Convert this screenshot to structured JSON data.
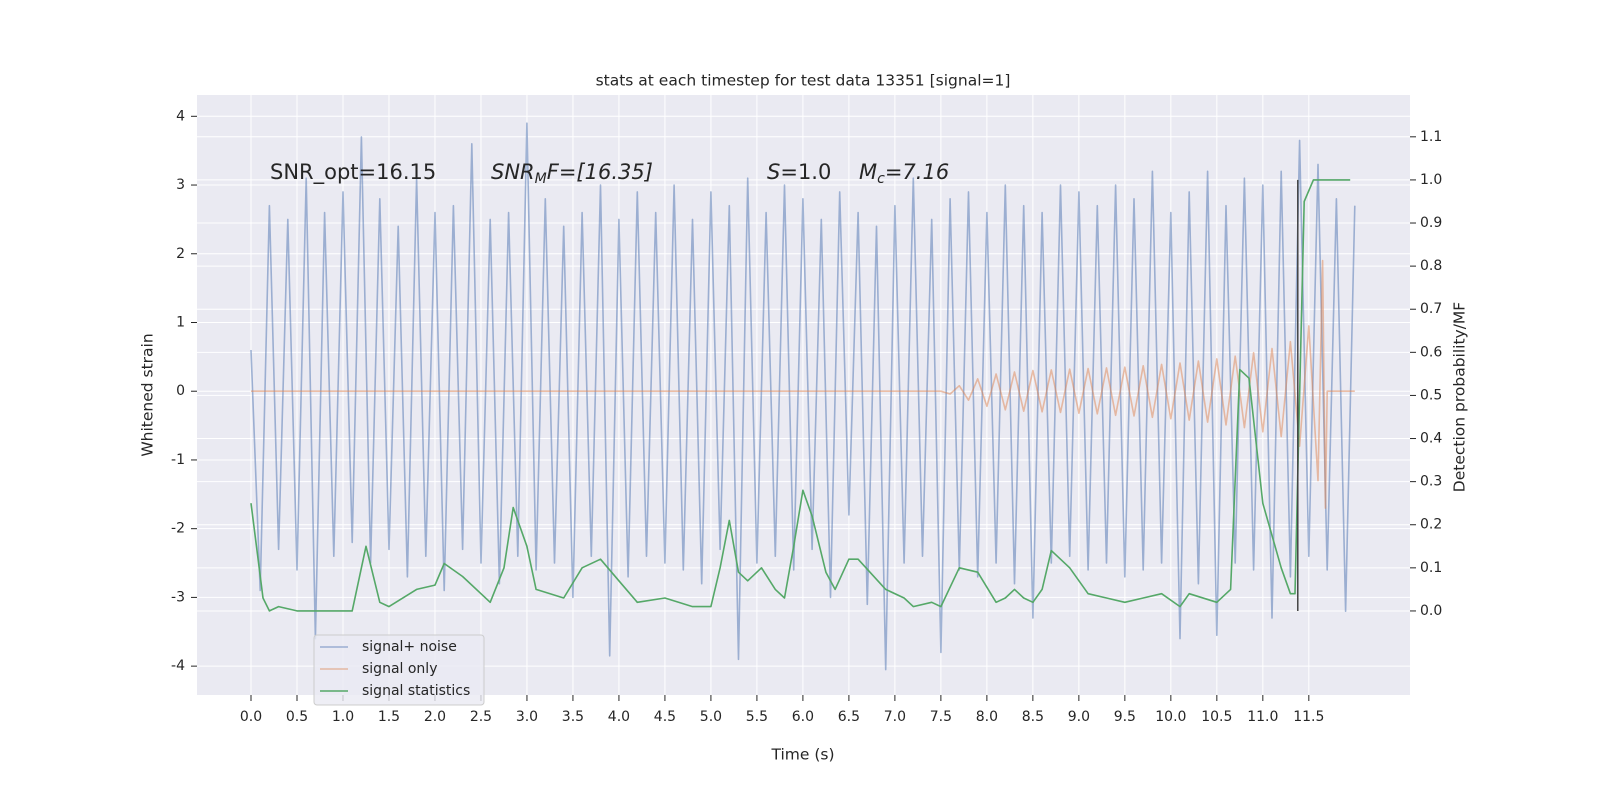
{
  "chart_data": {
    "type": "line",
    "title": "stats at each timestep for test data 13351 [signal=1]",
    "xlabel": "Time (s)",
    "ylabel": "Whitened strain",
    "y2label": "Detection probability/MF",
    "grid": true,
    "legend": "lower left",
    "xlim": [
      -0.587,
      12.6
    ],
    "ylim": [
      -4.42,
      4.31
    ],
    "y2lim": [
      -0.195,
      1.197
    ],
    "xticks": [
      {
        "value": 0,
        "label": "0.0"
      },
      0.5,
      {
        "value": 1,
        "label": "1.0"
      },
      1.5,
      {
        "value": 2,
        "label": "2.0"
      },
      2.5,
      {
        "value": 3,
        "label": "3.0"
      },
      3.5,
      {
        "value": 4,
        "label": "4.0"
      },
      4.5,
      {
        "value": 5,
        "label": "5.0"
      },
      5.5,
      {
        "value": 6,
        "label": "6.0"
      },
      6.5,
      {
        "value": 7,
        "label": "7.0"
      },
      7.5,
      {
        "value": 8,
        "label": "8.0"
      },
      8.5,
      {
        "value": 9,
        "label": "9.0"
      },
      9.5,
      {
        "value": 10,
        "label": "10.0"
      },
      10.5,
      {
        "value": 11,
        "label": "11.0"
      },
      11.5
    ],
    "yticks": [
      -4,
      -3,
      -2,
      -1,
      0,
      1,
      2,
      3,
      4
    ],
    "y2ticks": [
      {
        "value": 0,
        "label": "0.0"
      },
      0.1,
      0.2,
      0.3,
      0.4,
      0.5,
      0.6,
      0.7,
      0.8,
      0.9,
      {
        "value": 1,
        "label": "1.0"
      },
      1.1
    ],
    "annotations": [
      {
        "main": "SNR_opt=16.15"
      },
      {
        "main": "SNR",
        "sub": "M",
        "rest": "F=[16.35]"
      },
      {
        "main": "S",
        "rest": "=1.0"
      },
      {
        "main": "M",
        "sub": "c",
        "rest": "=7.16"
      }
    ],
    "vline": {
      "x": 11.38,
      "ymin": 0,
      "ymax": 1.0,
      "color": "#444444"
    },
    "series": [
      {
        "name": "signal+ noise",
        "color": "#4c72b0",
        "opacity": 0.5,
        "x": [
          0,
          0.1,
          0.2,
          0.3,
          0.4,
          0.5,
          0.6,
          0.7,
          0.8,
          0.9,
          1,
          1.1,
          1.2,
          1.3,
          1.4,
          1.5,
          1.6,
          1.7,
          1.8,
          1.9,
          2,
          2.1,
          2.2,
          2.3,
          2.4,
          2.5,
          2.6,
          2.7,
          2.8,
          2.9,
          3,
          3.1,
          3.2,
          3.3,
          3.4,
          3.5,
          3.6,
          3.7,
          3.8,
          3.9,
          4,
          4.1,
          4.2,
          4.3,
          4.4,
          4.5,
          4.6,
          4.7,
          4.8,
          4.9,
          5,
          5.1,
          5.2,
          5.3,
          5.4,
          5.5,
          5.6,
          5.7,
          5.8,
          5.9,
          6,
          6.1,
          6.2,
          6.3,
          6.4,
          6.5,
          6.6,
          6.7,
          6.8,
          6.9,
          7,
          7.1,
          7.2,
          7.3,
          7.4,
          7.5,
          7.6,
          7.7,
          7.8,
          7.9,
          8,
          8.1,
          8.2,
          8.3,
          8.4,
          8.5,
          8.6,
          8.7,
          8.8,
          8.9,
          9,
          9.1,
          9.2,
          9.3,
          9.4,
          9.5,
          9.6,
          9.7,
          9.8,
          9.9,
          10,
          10.1,
          10.2,
          10.3,
          10.4,
          10.5,
          10.6,
          10.7,
          10.8,
          10.9,
          11,
          11.1,
          11.2,
          11.3,
          11.4,
          11.5,
          11.6,
          11.7,
          11.8,
          11.9,
          12
        ],
        "values": [
          0.6,
          -2.9,
          2.7,
          -2.3,
          2.5,
          -2.6,
          3.1,
          -3.6,
          2.6,
          -2.4,
          2.9,
          -2.2,
          3.7,
          -2.5,
          2.8,
          -2.3,
          2.4,
          -2.7,
          3.1,
          -2.4,
          2.6,
          -2.9,
          2.7,
          -2.3,
          3.6,
          -2.5,
          2.5,
          -2.8,
          2.6,
          -2.4,
          3.9,
          -2.6,
          2.8,
          -2.5,
          2.4,
          -3.0,
          2.6,
          -2.4,
          3.0,
          -3.85,
          2.5,
          -2.7,
          2.9,
          -2.4,
          2.6,
          -2.5,
          3.0,
          -2.6,
          2.5,
          -2.8,
          2.9,
          -2.3,
          2.7,
          -3.9,
          3.1,
          -2.5,
          2.6,
          -2.4,
          3.0,
          -2.6,
          2.8,
          -2.3,
          2.5,
          -3.0,
          2.9,
          -1.8,
          2.6,
          -3.1,
          2.4,
          -4.05,
          2.7,
          -2.5,
          3.1,
          -2.4,
          2.5,
          -3.8,
          2.8,
          -2.6,
          2.9,
          -2.7,
          2.6,
          -2.5,
          3.0,
          -2.8,
          2.7,
          -3.3,
          2.6,
          -2.5,
          3.0,
          -2.4,
          2.9,
          -2.6,
          2.7,
          -2.5,
          3.0,
          -2.7,
          2.8,
          -2.6,
          3.2,
          -2.5,
          2.6,
          -3.6,
          2.9,
          -2.8,
          3.2,
          -3.55,
          2.7,
          -2.5,
          3.1,
          -2.6,
          3.0,
          -3.3,
          3.2,
          -2.7,
          3.65,
          -2.4,
          3.3,
          -2.6,
          2.8,
          -3.2,
          2.7
        ]
      },
      {
        "name": "signal only",
        "color": "#dd8452",
        "opacity": 0.5,
        "x": [
          0,
          7.5,
          7.6,
          7.7,
          7.8,
          7.9,
          8,
          8.1,
          8.2,
          8.3,
          8.4,
          8.5,
          8.6,
          8.7,
          8.8,
          8.9,
          9,
          9.1,
          9.2,
          9.3,
          9.4,
          9.5,
          9.6,
          9.7,
          9.8,
          9.9,
          10,
          10.1,
          10.2,
          10.3,
          10.4,
          10.5,
          10.6,
          10.7,
          10.8,
          10.9,
          11,
          11.1,
          11.2,
          11.3,
          11.4,
          11.5,
          11.6,
          11.65,
          11.68,
          11.7,
          12
        ],
        "values": [
          0,
          0,
          -0.04,
          0.08,
          -0.13,
          0.18,
          -0.22,
          0.25,
          -0.27,
          0.28,
          -0.29,
          0.3,
          -0.3,
          0.31,
          -0.31,
          0.32,
          -0.32,
          0.33,
          -0.33,
          0.34,
          -0.35,
          0.35,
          -0.36,
          0.37,
          -0.38,
          0.39,
          -0.4,
          0.41,
          -0.42,
          0.44,
          -0.45,
          0.47,
          -0.49,
          0.51,
          -0.53,
          0.56,
          -0.59,
          0.62,
          -0.66,
          0.72,
          -0.8,
          0.95,
          -1.3,
          1.9,
          -1.7,
          0,
          0
        ]
      },
      {
        "name": "signal statistics",
        "color": "#55a868",
        "opacity": 1,
        "axis": "y2",
        "x": [
          0,
          0.13,
          0.2,
          0.3,
          0.5,
          0.8,
          1.1,
          1.25,
          1.4,
          1.5,
          1.8,
          2.0,
          2.1,
          2.3,
          2.6,
          2.75,
          2.85,
          3.0,
          3.1,
          3.4,
          3.6,
          3.8,
          4.0,
          4.2,
          4.5,
          4.8,
          5.0,
          5.1,
          5.2,
          5.3,
          5.4,
          5.55,
          5.7,
          5.8,
          5.9,
          6.0,
          6.1,
          6.25,
          6.35,
          6.5,
          6.6,
          6.9,
          7.1,
          7.2,
          7.4,
          7.5,
          7.7,
          7.9,
          8.1,
          8.2,
          8.3,
          8.4,
          8.5,
          8.6,
          8.7,
          8.9,
          9.1,
          9.3,
          9.5,
          9.7,
          9.9,
          10.1,
          10.2,
          10.5,
          10.65,
          10.75,
          10.85,
          11.0,
          11.2,
          11.3,
          11.35,
          11.4,
          11.45,
          11.55,
          11.95
        ],
        "values": [
          0.25,
          0.03,
          0.0,
          0.01,
          0.0,
          0.0,
          0.0,
          0.15,
          0.02,
          0.01,
          0.05,
          0.06,
          0.11,
          0.08,
          0.02,
          0.1,
          0.24,
          0.15,
          0.05,
          0.03,
          0.1,
          0.12,
          0.07,
          0.02,
          0.03,
          0.01,
          0.01,
          0.1,
          0.21,
          0.09,
          0.07,
          0.1,
          0.05,
          0.03,
          0.15,
          0.28,
          0.22,
          0.09,
          0.05,
          0.12,
          0.12,
          0.05,
          0.03,
          0.01,
          0.02,
          0.01,
          0.1,
          0.09,
          0.02,
          0.03,
          0.05,
          0.03,
          0.02,
          0.05,
          0.14,
          0.1,
          0.04,
          0.03,
          0.02,
          0.03,
          0.04,
          0.01,
          0.04,
          0.02,
          0.05,
          0.56,
          0.54,
          0.25,
          0.1,
          0.04,
          0.04,
          0.5,
          0.95,
          1.0,
          1.0
        ]
      }
    ]
  }
}
